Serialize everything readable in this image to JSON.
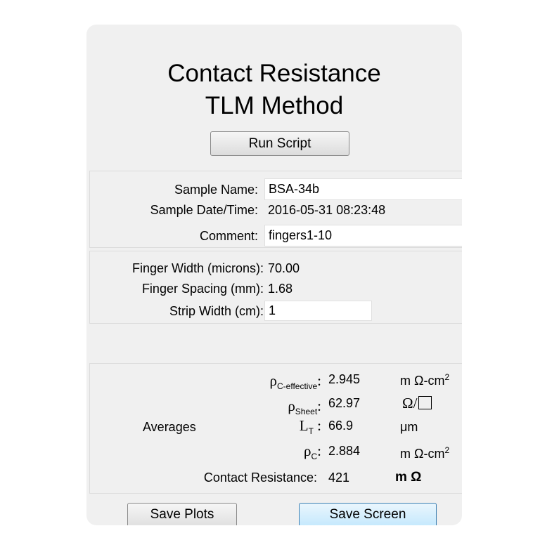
{
  "title": {
    "line1": "Contact Resistance",
    "line2": "TLM Method"
  },
  "run_button": "Run Script",
  "sample": {
    "name_label": "Sample Name:",
    "name_value": "BSA-34b",
    "datetime_label": "Sample Date/Time:",
    "datetime_value": "2016-05-31 08:23:48",
    "comment_label": "Comment:",
    "comment_value": "fingers1-10"
  },
  "geometry": {
    "finger_width_label": "Finger Width (microns):",
    "finger_width_value": "70.00",
    "finger_spacing_label": "Finger Spacing (mm):",
    "finger_spacing_value": "1.68",
    "strip_width_label": "Strip Width (cm):",
    "strip_width_value": "1"
  },
  "averages": {
    "label": "Averages",
    "rho_c_eff": {
      "symbol": "ρ",
      "sub": "C-effective",
      "value": "2.945",
      "unit": "m Ω-cm",
      "unit_sup": "2"
    },
    "rho_sheet": {
      "symbol": "ρ",
      "sub": "Sheet",
      "value": "62.97",
      "unit": "Ω/"
    },
    "lt": {
      "symbol": "L",
      "sub": "T",
      "value": "66.9",
      "unit": "μm"
    },
    "rho_c": {
      "symbol": "ρ",
      "sub": "C",
      "value": "2.884",
      "unit": "m Ω-cm",
      "unit_sup": "2"
    },
    "contact_resistance": {
      "label": "Contact Resistance:",
      "value": "421",
      "unit": "m Ω"
    }
  },
  "buttons": {
    "save_plots": "Save Plots",
    "save_screen": "Save Screen"
  }
}
